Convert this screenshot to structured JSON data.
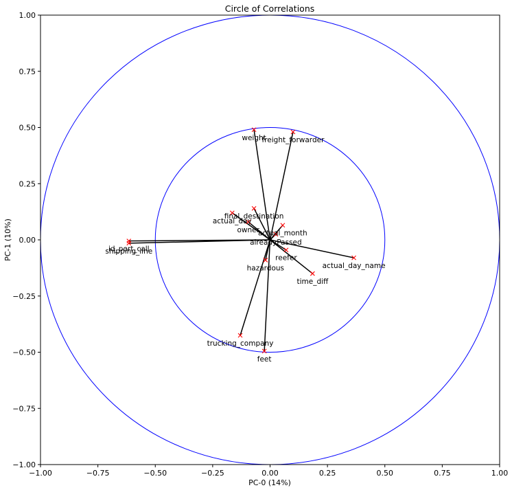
{
  "chart_data": {
    "type": "scatter",
    "title": "Circle of Correlations",
    "xlabel": "PC-0 (14%)",
    "ylabel": "PC-1 (10%)",
    "xlim": [
      -1.0,
      1.0
    ],
    "ylim": [
      -1.0,
      1.0
    ],
    "xticks": [
      -1.0,
      -0.75,
      -0.5,
      -0.25,
      0.0,
      0.25,
      0.5,
      0.75,
      1.0
    ],
    "yticks": [
      -1.0,
      -0.75,
      -0.5,
      -0.25,
      0.0,
      0.25,
      0.5,
      0.75,
      1.0
    ],
    "xtick_labels": [
      "−1.00",
      "−0.75",
      "−0.50",
      "−0.25",
      "0.00",
      "0.25",
      "0.50",
      "0.75",
      "1.00"
    ],
    "ytick_labels": [
      "−1.00",
      "−0.75",
      "−0.50",
      "−0.25",
      "0.00",
      "0.25",
      "0.50",
      "0.75",
      "1.00"
    ],
    "circles": [
      1.0,
      0.5
    ],
    "grid": false,
    "legend": "none",
    "colors": {
      "circle": "#0000ff",
      "marker": "#ff0000",
      "vector": "#000000"
    },
    "points": [
      {
        "label": "weight",
        "x": -0.07,
        "y": 0.49
      },
      {
        "label": "freight_forwarder",
        "x": 0.1,
        "y": 0.48
      },
      {
        "label": "actual_day",
        "x": -0.165,
        "y": 0.12
      },
      {
        "label": "final_destination",
        "x": -0.07,
        "y": 0.14
      },
      {
        "label": "owner",
        "x": -0.095,
        "y": 0.08
      },
      {
        "label": "actual_month",
        "x": 0.055,
        "y": 0.065
      },
      {
        "label": "alreadyPassed",
        "x": 0.025,
        "y": 0.025
      },
      {
        "label": "id_port_call",
        "x": -0.615,
        "y": -0.005
      },
      {
        "label": "shipping_line",
        "x": -0.615,
        "y": -0.015
      },
      {
        "label": "reefer",
        "x": 0.07,
        "y": -0.045
      },
      {
        "label": "actual_day_name",
        "x": 0.365,
        "y": -0.08
      },
      {
        "label": "hazardous",
        "x": -0.02,
        "y": -0.09
      },
      {
        "label": "time_diff",
        "x": 0.185,
        "y": -0.15
      },
      {
        "label": "trucking_company",
        "x": -0.13,
        "y": -0.425
      },
      {
        "label": "feet",
        "x": -0.025,
        "y": -0.495
      }
    ]
  }
}
